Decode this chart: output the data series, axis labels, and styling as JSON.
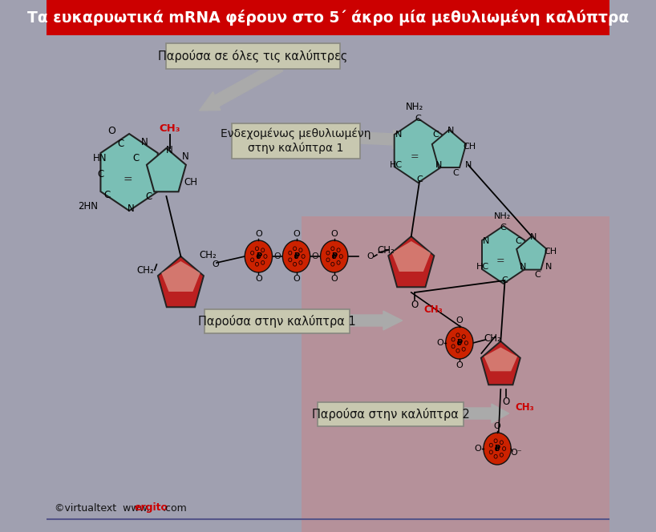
{
  "title": "Τα ευκαρυωτικά mRNA φέρουν στο 5΄ άκρο μία μεθυλιωμένη καλύπτρα",
  "title_bg": "#cc0000",
  "title_color": "#ffffff",
  "bg_color": "#a0a0b0",
  "label1": "Παρούσα σε όλες τις καλύπτρες",
  "label2": "Ενδεχομένως μεθυλιωμένη\nστην καλύπτρα 1",
  "label3": "Παρούσα στην καλύπτρα 1",
  "label4": "Παρούσα στην καλύπτρα 2",
  "credit1": "©virtualtext  www.",
  "credit2": "ergito",
  "credit3": ".com",
  "ch3_color": "#cc0000",
  "och3_color": "#cc0000",
  "ring_color": "#7abfb5",
  "phosphate_color": "#cc2200",
  "arrow_color": "#aaaaaa",
  "label_bg": "#c8c8b0",
  "label_border": "#888880",
  "pink_band": "#e09090"
}
